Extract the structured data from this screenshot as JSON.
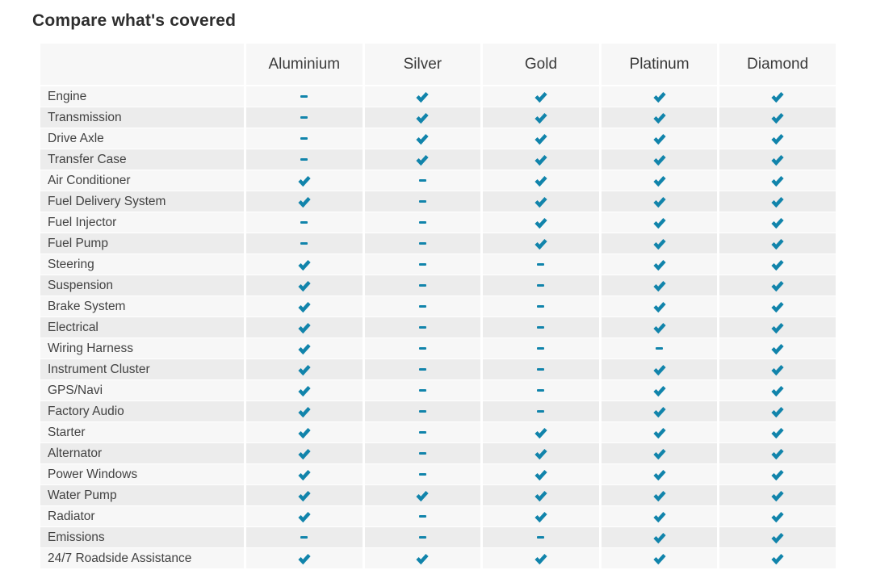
{
  "page": {
    "title": "Compare what's covered"
  },
  "table": {
    "columns": [
      "Aluminium",
      "Silver",
      "Gold",
      "Platinum",
      "Diamond"
    ],
    "check_color": "#1184ab",
    "row_color_light": "#f7f7f7",
    "row_color_dark": "#ececec",
    "icons": {
      "covered": "check-icon",
      "not_covered": "dash-icon"
    },
    "rows": [
      {
        "label": "Engine",
        "covered": [
          false,
          true,
          true,
          true,
          true
        ]
      },
      {
        "label": "Transmission",
        "covered": [
          false,
          true,
          true,
          true,
          true
        ]
      },
      {
        "label": "Drive Axle",
        "covered": [
          false,
          true,
          true,
          true,
          true
        ]
      },
      {
        "label": "Transfer Case",
        "covered": [
          false,
          true,
          true,
          true,
          true
        ]
      },
      {
        "label": "Air Conditioner",
        "covered": [
          true,
          false,
          true,
          true,
          true
        ]
      },
      {
        "label": "Fuel Delivery System",
        "covered": [
          true,
          false,
          true,
          true,
          true
        ]
      },
      {
        "label": "Fuel Injector",
        "covered": [
          false,
          false,
          true,
          true,
          true
        ]
      },
      {
        "label": "Fuel Pump",
        "covered": [
          false,
          false,
          true,
          true,
          true
        ]
      },
      {
        "label": "Steering",
        "covered": [
          true,
          false,
          false,
          true,
          true
        ]
      },
      {
        "label": "Suspension",
        "covered": [
          true,
          false,
          false,
          true,
          true
        ]
      },
      {
        "label": "Brake System",
        "covered": [
          true,
          false,
          false,
          true,
          true
        ]
      },
      {
        "label": "Electrical",
        "covered": [
          true,
          false,
          false,
          true,
          true
        ]
      },
      {
        "label": "Wiring Harness",
        "covered": [
          true,
          false,
          false,
          false,
          true
        ]
      },
      {
        "label": "Instrument Cluster",
        "covered": [
          true,
          false,
          false,
          true,
          true
        ]
      },
      {
        "label": "GPS/Navi",
        "covered": [
          true,
          false,
          false,
          true,
          true
        ]
      },
      {
        "label": "Factory Audio",
        "covered": [
          true,
          false,
          false,
          true,
          true
        ]
      },
      {
        "label": "Starter",
        "covered": [
          true,
          false,
          true,
          true,
          true
        ]
      },
      {
        "label": "Alternator",
        "covered": [
          true,
          false,
          true,
          true,
          true
        ]
      },
      {
        "label": "Power Windows",
        "covered": [
          true,
          false,
          true,
          true,
          true
        ]
      },
      {
        "label": "Water Pump",
        "covered": [
          true,
          true,
          true,
          true,
          true
        ]
      },
      {
        "label": "Radiator",
        "covered": [
          true,
          false,
          true,
          true,
          true
        ]
      },
      {
        "label": "Emissions",
        "covered": [
          false,
          false,
          false,
          true,
          true
        ]
      },
      {
        "label": "24/7 Roadside Assistance",
        "covered": [
          true,
          true,
          true,
          true,
          true
        ]
      }
    ]
  }
}
